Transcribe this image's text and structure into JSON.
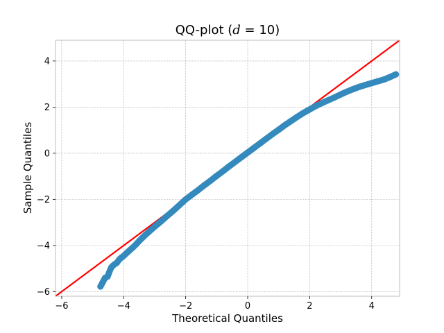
{
  "chart_data": {
    "type": "scatter",
    "title": {
      "prefix": "QQ-plot (",
      "math": "d",
      "equals": " = ",
      "value": "10",
      "suffix": ")"
    },
    "xlabel": "Theoretical Quantiles",
    "ylabel": "Sample Quantiles",
    "xlim": [
      -6.2,
      4.9
    ],
    "ylim": [
      -6.2,
      4.9
    ],
    "xticks": [
      -6,
      -4,
      -2,
      0,
      2,
      4
    ],
    "yticks": [
      -6,
      -4,
      -2,
      0,
      2,
      4
    ],
    "grid": true,
    "colors": {
      "points": "#348abd",
      "reference_line": "#ff0000",
      "grid": "#b0b0b0",
      "frame": "#bcbcbc"
    },
    "reference_line": {
      "slope": 1,
      "intercept": 0
    },
    "series": [
      {
        "x": [
          -4.75,
          -4.6,
          -4.52,
          -4.45,
          -4.4,
          -4.35,
          -4.3,
          -4.22,
          -4.15,
          -4.1,
          -4.0,
          -3.9,
          -3.8,
          -3.7,
          -3.6,
          -3.5,
          -3.4,
          -3.3,
          -3.2,
          -3.1,
          -3.0,
          -2.8,
          -2.6,
          -2.4,
          -2.2,
          -2.0,
          -1.8,
          -1.6,
          -1.4,
          -1.2,
          -1.0,
          -0.8,
          -0.6,
          -0.4,
          -0.2,
          0.0,
          0.2,
          0.4,
          0.6,
          0.8,
          1.0,
          1.2,
          1.4,
          1.6,
          1.8,
          2.0,
          2.2,
          2.4,
          2.6,
          2.8,
          3.0,
          3.2,
          3.4,
          3.6,
          3.8,
          4.0,
          4.2,
          4.4,
          4.55,
          4.78
        ],
        "y": [
          -5.78,
          -5.4,
          -5.35,
          -5.1,
          -4.95,
          -4.88,
          -4.82,
          -4.75,
          -4.62,
          -4.55,
          -4.45,
          -4.32,
          -4.2,
          -4.08,
          -3.95,
          -3.8,
          -3.67,
          -3.54,
          -3.42,
          -3.3,
          -3.18,
          -2.96,
          -2.72,
          -2.49,
          -2.25,
          -2.0,
          -1.8,
          -1.6,
          -1.39,
          -1.19,
          -0.98,
          -0.78,
          -0.57,
          -0.37,
          -0.17,
          0.03,
          0.23,
          0.43,
          0.63,
          0.83,
          1.02,
          1.22,
          1.4,
          1.58,
          1.75,
          1.9,
          2.05,
          2.18,
          2.3,
          2.42,
          2.55,
          2.67,
          2.78,
          2.88,
          2.96,
          3.04,
          3.12,
          3.2,
          3.28,
          3.42
        ]
      }
    ]
  }
}
